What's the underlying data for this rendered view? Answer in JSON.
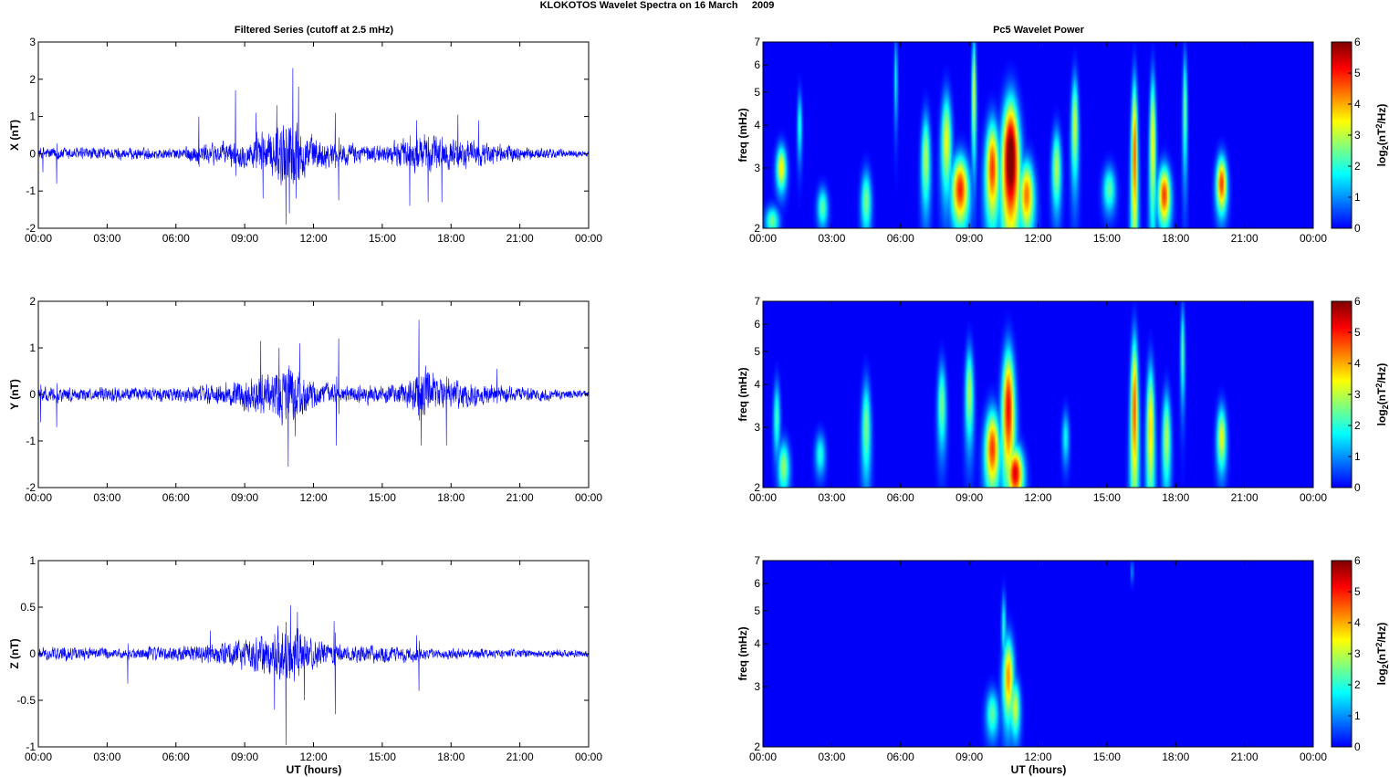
{
  "figure": {
    "title": "KLOKOTOS Wavelet Spectra on 16 March     2009",
    "left_title": "Filtered Series (cutoff at 2.5 mHz)",
    "right_title": "Pc5 Wavelet Power",
    "x_label": "UT (hours)",
    "time_ticks": [
      "00:00",
      "03:00",
      "06:00",
      "09:00",
      "12:00",
      "15:00",
      "18:00",
      "21:00",
      "00:00"
    ],
    "line_color": "#0000ff",
    "colorbar_label": "log2(nT2/Hz)",
    "colormap": "jet",
    "background_power_color": "#00008f"
  },
  "chart_data": [
    {
      "type": "line",
      "panel": "X",
      "ylabel": "X (nT)",
      "xlim_hours": [
        0,
        24
      ],
      "ylim": [
        -2,
        3
      ],
      "yticks": [
        "-2",
        "-1",
        "0",
        "1",
        "2",
        "3"
      ],
      "noise_envelope": [
        [
          0,
          0.25
        ],
        [
          6,
          0.2
        ],
        [
          7,
          0.35
        ],
        [
          9,
          0.5
        ],
        [
          10,
          0.8
        ],
        [
          11,
          1.4
        ],
        [
          12,
          0.6
        ],
        [
          13,
          0.4
        ],
        [
          15,
          0.3
        ],
        [
          16,
          0.55
        ],
        [
          17,
          0.75
        ],
        [
          18,
          0.55
        ],
        [
          19,
          0.45
        ],
        [
          21,
          0.25
        ],
        [
          24,
          0.12
        ]
      ],
      "spikes": [
        [
          0.8,
          -0.8
        ],
        [
          0.2,
          -0.5
        ],
        [
          7.0,
          1.0
        ],
        [
          8.6,
          1.7
        ],
        [
          9.5,
          1.1
        ],
        [
          9.8,
          -1.2
        ],
        [
          10.4,
          1.3
        ],
        [
          10.8,
          -1.9
        ],
        [
          10.95,
          -1.6
        ],
        [
          11.1,
          2.3
        ],
        [
          11.25,
          -1.2
        ],
        [
          11.35,
          1.8
        ],
        [
          12.95,
          1.1
        ],
        [
          13.1,
          -1.25
        ],
        [
          16.2,
          -1.4
        ],
        [
          16.5,
          0.9
        ],
        [
          17.0,
          -1.3
        ],
        [
          17.6,
          -1.3
        ],
        [
          18.3,
          1.05
        ],
        [
          19.2,
          0.9
        ]
      ]
    },
    {
      "type": "line",
      "panel": "Y",
      "ylabel": "Y (nT)",
      "xlim_hours": [
        0,
        24
      ],
      "ylim": [
        -2,
        2
      ],
      "yticks": [
        "-2",
        "-1",
        "0",
        "1",
        "2"
      ],
      "noise_envelope": [
        [
          0,
          0.2
        ],
        [
          6,
          0.2
        ],
        [
          8,
          0.3
        ],
        [
          10,
          0.6
        ],
        [
          11,
          0.9
        ],
        [
          12,
          0.4
        ],
        [
          13,
          0.25
        ],
        [
          15,
          0.25
        ],
        [
          16,
          0.35
        ],
        [
          16.7,
          0.7
        ],
        [
          17.5,
          0.5
        ],
        [
          19,
          0.35
        ],
        [
          20,
          0.25
        ],
        [
          24,
          0.1
        ]
      ],
      "spikes": [
        [
          0.1,
          -0.6
        ],
        [
          0.8,
          -0.7
        ],
        [
          9.7,
          1.15
        ],
        [
          10.9,
          -1.55
        ],
        [
          10.5,
          1.0
        ],
        [
          11.2,
          -0.9
        ],
        [
          11.4,
          1.1
        ],
        [
          13.1,
          1.2
        ],
        [
          13.0,
          -1.1
        ],
        [
          16.6,
          1.6
        ],
        [
          16.7,
          -1.1
        ],
        [
          17.8,
          -1.1
        ],
        [
          20.0,
          0.55
        ]
      ]
    },
    {
      "type": "line",
      "panel": "Z",
      "ylabel": "Z (nT)",
      "xlim_hours": [
        0,
        24
      ],
      "ylim": [
        -1,
        1
      ],
      "yticks": [
        "-1",
        "-0.5",
        "0",
        "0.5",
        "1"
      ],
      "noise_envelope": [
        [
          0,
          0.1
        ],
        [
          4,
          0.08
        ],
        [
          7,
          0.12
        ],
        [
          9,
          0.2
        ],
        [
          10,
          0.3
        ],
        [
          11,
          0.45
        ],
        [
          12,
          0.2
        ],
        [
          13,
          0.12
        ],
        [
          16,
          0.12
        ],
        [
          17,
          0.08
        ],
        [
          24,
          0.05
        ]
      ],
      "spikes": [
        [
          3.9,
          -0.32
        ],
        [
          7.5,
          0.25
        ],
        [
          10.3,
          -0.6
        ],
        [
          10.8,
          -0.98
        ],
        [
          11.0,
          0.52
        ],
        [
          11.3,
          0.45
        ],
        [
          11.6,
          -0.5
        ],
        [
          12.95,
          -0.65
        ],
        [
          12.9,
          0.35
        ],
        [
          16.6,
          -0.4
        ],
        [
          16.5,
          0.2
        ]
      ]
    },
    {
      "type": "heatmap",
      "panel": "X",
      "ylabel": "freq (mHz)",
      "xlim_hours": [
        0,
        24
      ],
      "ylim_mHz": [
        2,
        7
      ],
      "yscale": "log",
      "yticks": [
        "2",
        "3",
        "4",
        "5",
        "6",
        "7"
      ],
      "clim": [
        0,
        6
      ],
      "colorbar_ticks": [
        "0",
        "1",
        "2",
        "3",
        "4",
        "5",
        "6"
      ],
      "blobs": [
        {
          "t": 0.8,
          "f": 3.0,
          "dt": 0.22,
          "df": 0.45,
          "p": 3.6
        },
        {
          "t": 0.4,
          "f": 2.1,
          "dt": 0.25,
          "df": 0.2,
          "p": 2.5
        },
        {
          "t": 1.6,
          "f": 4.0,
          "dt": 0.12,
          "df": 0.9,
          "p": 2.0
        },
        {
          "t": 2.6,
          "f": 2.3,
          "dt": 0.2,
          "df": 0.3,
          "p": 2.4
        },
        {
          "t": 4.5,
          "f": 2.4,
          "dt": 0.2,
          "df": 0.5,
          "p": 2.6
        },
        {
          "t": 5.8,
          "f": 5.5,
          "dt": 0.1,
          "df": 1.6,
          "p": 1.8
        },
        {
          "t": 7.1,
          "f": 3.2,
          "dt": 0.2,
          "df": 1.0,
          "p": 3.0
        },
        {
          "t": 8.0,
          "f": 3.6,
          "dt": 0.25,
          "df": 1.2,
          "p": 3.4
        },
        {
          "t": 8.6,
          "f": 2.6,
          "dt": 0.35,
          "df": 0.6,
          "p": 5.0
        },
        {
          "t": 9.2,
          "f": 5.0,
          "dt": 0.12,
          "df": 2.0,
          "p": 3.5
        },
        {
          "t": 10.0,
          "f": 3.0,
          "dt": 0.3,
          "df": 1.0,
          "p": 4.8
        },
        {
          "t": 10.8,
          "f": 3.2,
          "dt": 0.4,
          "df": 1.4,
          "p": 6.6
        },
        {
          "t": 11.5,
          "f": 2.5,
          "dt": 0.3,
          "df": 0.6,
          "p": 4.4
        },
        {
          "t": 12.8,
          "f": 3.0,
          "dt": 0.2,
          "df": 0.8,
          "p": 3.0
        },
        {
          "t": 13.6,
          "f": 4.0,
          "dt": 0.18,
          "df": 1.4,
          "p": 3.2
        },
        {
          "t": 15.1,
          "f": 2.6,
          "dt": 0.25,
          "df": 0.4,
          "p": 2.4
        },
        {
          "t": 16.2,
          "f": 3.3,
          "dt": 0.15,
          "df": 1.9,
          "p": 4.6
        },
        {
          "t": 17.0,
          "f": 3.6,
          "dt": 0.15,
          "df": 1.8,
          "p": 3.6
        },
        {
          "t": 17.5,
          "f": 2.5,
          "dt": 0.25,
          "df": 0.5,
          "p": 4.8
        },
        {
          "t": 18.4,
          "f": 4.5,
          "dt": 0.12,
          "df": 1.8,
          "p": 2.6
        },
        {
          "t": 20.0,
          "f": 2.7,
          "dt": 0.22,
          "df": 0.5,
          "p": 4.8
        }
      ]
    },
    {
      "type": "heatmap",
      "panel": "Y",
      "ylabel": "freq (mHz)",
      "xlim_hours": [
        0,
        24
      ],
      "ylim_mHz": [
        2,
        7
      ],
      "yscale": "log",
      "yticks": [
        "2",
        "3",
        "4",
        "5",
        "6",
        "7"
      ],
      "clim": [
        0,
        6
      ],
      "colorbar_ticks": [
        "0",
        "1",
        "2",
        "3",
        "4",
        "5",
        "6"
      ],
      "blobs": [
        {
          "t": 0.9,
          "f": 2.3,
          "dt": 0.22,
          "df": 0.4,
          "p": 2.8
        },
        {
          "t": 0.6,
          "f": 3.2,
          "dt": 0.15,
          "df": 0.8,
          "p": 2.2
        },
        {
          "t": 2.5,
          "f": 2.5,
          "dt": 0.2,
          "df": 0.35,
          "p": 2.0
        },
        {
          "t": 4.5,
          "f": 3.0,
          "dt": 0.2,
          "df": 1.0,
          "p": 2.6
        },
        {
          "t": 7.8,
          "f": 3.5,
          "dt": 0.2,
          "df": 1.0,
          "p": 2.6
        },
        {
          "t": 9.0,
          "f": 3.8,
          "dt": 0.2,
          "df": 1.2,
          "p": 3.0
        },
        {
          "t": 10.0,
          "f": 2.6,
          "dt": 0.3,
          "df": 0.7,
          "p": 4.8
        },
        {
          "t": 10.7,
          "f": 3.4,
          "dt": 0.3,
          "df": 1.5,
          "p": 5.2
        },
        {
          "t": 11.0,
          "f": 2.2,
          "dt": 0.3,
          "df": 0.4,
          "p": 5.4
        },
        {
          "t": 13.2,
          "f": 2.8,
          "dt": 0.15,
          "df": 0.5,
          "p": 1.8
        },
        {
          "t": 16.2,
          "f": 3.4,
          "dt": 0.18,
          "df": 1.9,
          "p": 4.6
        },
        {
          "t": 16.9,
          "f": 3.0,
          "dt": 0.18,
          "df": 1.4,
          "p": 3.8
        },
        {
          "t": 17.6,
          "f": 2.8,
          "dt": 0.18,
          "df": 0.9,
          "p": 3.0
        },
        {
          "t": 18.3,
          "f": 5.0,
          "dt": 0.12,
          "df": 1.6,
          "p": 2.4
        },
        {
          "t": 20.0,
          "f": 2.8,
          "dt": 0.2,
          "df": 0.6,
          "p": 3.4
        }
      ]
    },
    {
      "type": "heatmap",
      "panel": "Z",
      "ylabel": "freq (mHz)",
      "xlim_hours": [
        0,
        24
      ],
      "ylim_mHz": [
        2,
        7
      ],
      "yscale": "log",
      "yticks": [
        "2",
        "3",
        "4",
        "5",
        "6",
        "7"
      ],
      "clim": [
        0,
        6
      ],
      "colorbar_ticks": [
        "0",
        "1",
        "2",
        "3",
        "4",
        "5",
        "6"
      ],
      "blobs": [
        {
          "t": 10.0,
          "f": 2.5,
          "dt": 0.25,
          "df": 0.4,
          "p": 2.4
        },
        {
          "t": 10.7,
          "f": 3.2,
          "dt": 0.25,
          "df": 0.9,
          "p": 4.2
        },
        {
          "t": 11.0,
          "f": 2.6,
          "dt": 0.2,
          "df": 0.5,
          "p": 3.2
        },
        {
          "t": 10.5,
          "f": 4.5,
          "dt": 0.12,
          "df": 1.0,
          "p": 2.0
        },
        {
          "t": 16.1,
          "f": 6.5,
          "dt": 0.08,
          "df": 0.5,
          "p": 1.3
        }
      ]
    }
  ]
}
